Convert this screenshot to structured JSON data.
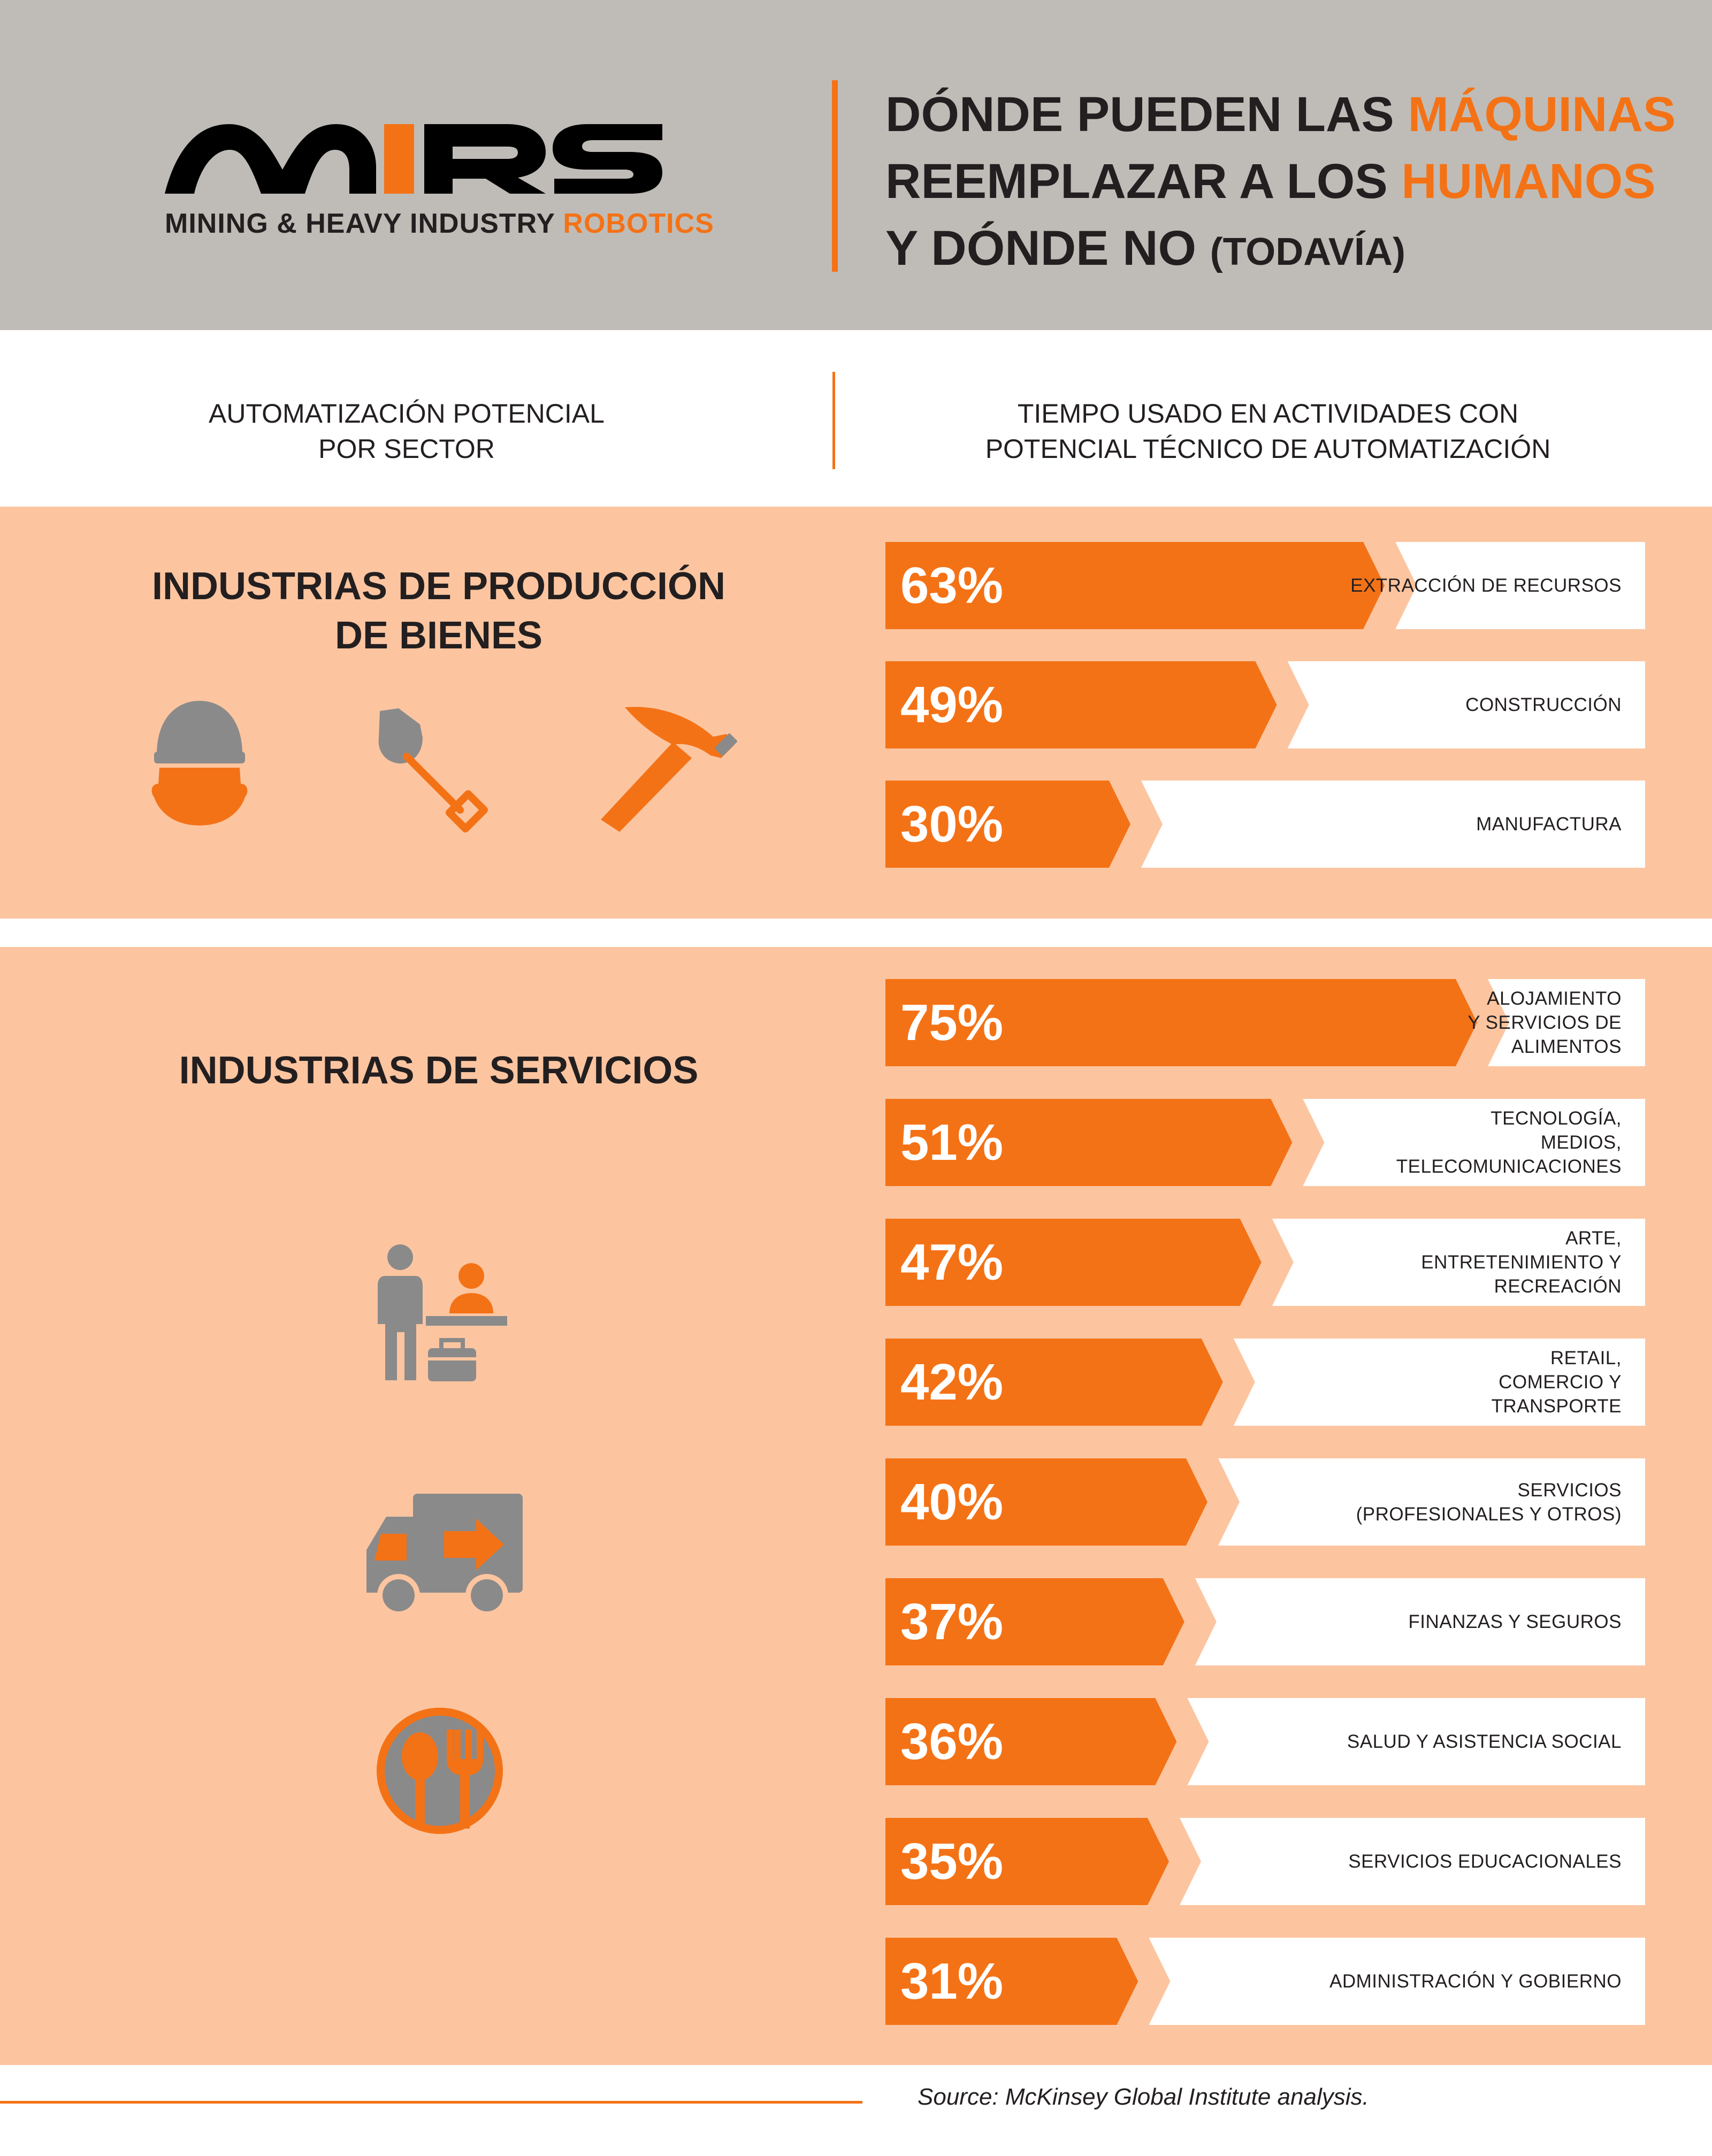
{
  "header": {
    "logo_text": "MIRS",
    "subtitle_main": "MINING & HEAVY INDUSTRY ",
    "subtitle_accent": "ROBOTICS",
    "title": {
      "l1a": "DÓNDE PUEDEN LAS ",
      "l1b": "MÁQUINAS",
      "l2a": "REEMPLAZAR A LOS ",
      "l2b": "HUMANOS",
      "l3a": "Y DÓNDE NO ",
      "l3b": "(TODAVÍA)"
    }
  },
  "columns": {
    "left": "AUTOMATIZACIÓN POTENCIAL\nPOR SECTOR",
    "right": "TIEMPO USADO EN ACTIVIDADES CON\nPOTENCIAL TÉCNICO DE AUTOMATIZACIÓN"
  },
  "icons": {
    "goods": [
      "worker-helmet-icon",
      "shovel-icon",
      "hammer-icon"
    ],
    "services": [
      "reception-desk-icon",
      "delivery-truck-icon",
      "spoon-fork-icon"
    ]
  },
  "colors": {
    "accent": "#f47216",
    "accent_light": "#fcc5a0",
    "header_bg": "#bfbcb7",
    "icon_gray": "#8a8a8a"
  },
  "chart_data": [
    {
      "type": "bar",
      "title": "INDUSTRIAS DE PRODUCCIÓN\nDE BIENES",
      "categories": [
        "EXTRACCIÓN DE RECURSOS",
        "CONSTRUCCIÓN",
        "MANUFACTURA"
      ],
      "values": [
        63,
        49,
        30
      ],
      "value_labels": [
        "63%",
        "49%",
        "30%"
      ],
      "xlim": [
        0,
        100
      ],
      "orientation": "horizontal"
    },
    {
      "type": "bar",
      "title": "INDUSTRIAS DE SERVICIOS",
      "categories": [
        "ALOJAMIENTO\nY SERVICIOS DE\nALIMENTOS",
        "TECNOLOGÍA,\nMEDIOS,\nTELECOMUNICACIONES",
        "ARTE,\nENTRETENIMIENTO Y\nRECREACIÓN",
        "RETAIL,\nCOMERCIO Y\nTRANSPORTE",
        "SERVICIOS\n(PROFESIONALES Y OTROS)",
        "FINANZAS Y SEGUROS",
        "SALUD Y ASISTENCIA SOCIAL",
        "SERVICIOS EDUCACIONALES",
        "ADMINISTRACIÓN Y GOBIERNO"
      ],
      "values": [
        75,
        51,
        47,
        42,
        40,
        37,
        36,
        35,
        31
      ],
      "value_labels": [
        "75%",
        "51%",
        "47%",
        "42%",
        "40%",
        "37%",
        "36%",
        "35%",
        "31%"
      ],
      "xlim": [
        0,
        100
      ],
      "orientation": "horizontal"
    }
  ],
  "source": "Source: McKinsey Global Institute analysis."
}
